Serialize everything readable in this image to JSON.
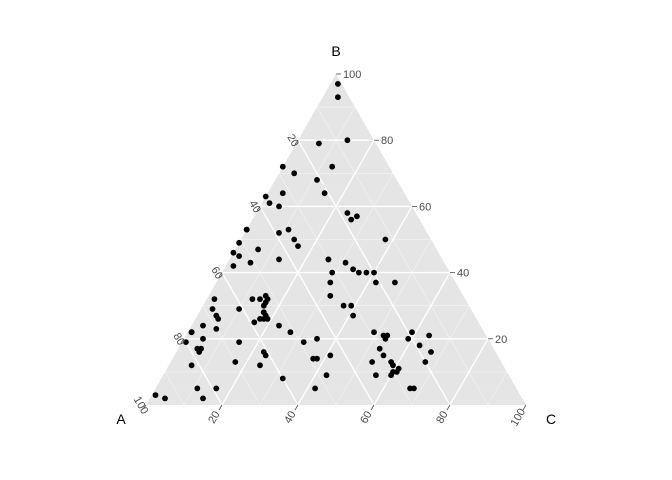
{
  "chart_data": {
    "type": "scatter",
    "subtype": "ternary",
    "title": "",
    "axes": {
      "A": {
        "label": "A"
      },
      "B": {
        "label": "B"
      },
      "C": {
        "label": "C"
      }
    },
    "ticks": [
      "20",
      "40",
      "60",
      "80",
      "100"
    ],
    "grid": true,
    "legend": "none",
    "colors": {
      "panel": "#e5e5e5",
      "grid": "#ffffff",
      "point": "#000000"
    },
    "points": [
      {
        "b": 97,
        "c": 2
      },
      {
        "b": 93,
        "c": 4
      },
      {
        "b": 80,
        "c": 13
      },
      {
        "b": 79,
        "c": 6
      },
      {
        "b": 72,
        "c": 0
      },
      {
        "b": 72,
        "c": 13
      },
      {
        "b": 70,
        "c": 4
      },
      {
        "b": 68,
        "c": 11
      },
      {
        "b": 64,
        "c": 15
      },
      {
        "b": 64,
        "c": 4
      },
      {
        "b": 63,
        "c": 0
      },
      {
        "b": 61,
        "c": 2
      },
      {
        "b": 60,
        "c": 5
      },
      {
        "b": 58,
        "c": 24
      },
      {
        "b": 57,
        "c": 27
      },
      {
        "b": 56,
        "c": 26
      },
      {
        "b": 53,
        "c": 0
      },
      {
        "b": 53,
        "c": 0
      },
      {
        "b": 53,
        "c": 11
      },
      {
        "b": 52,
        "c": 9
      },
      {
        "b": 50,
        "c": 14
      },
      {
        "b": 50,
        "c": 38
      },
      {
        "b": 49,
        "c": 0
      },
      {
        "b": 48,
        "c": 16
      },
      {
        "b": 47,
        "c": 6
      },
      {
        "b": 46,
        "c": 0
      },
      {
        "b": 45,
        "c": 2
      },
      {
        "b": 44,
        "c": 13
      },
      {
        "b": 44,
        "c": 26
      },
      {
        "b": 44,
        "c": 26
      },
      {
        "b": 43,
        "c": 31
      },
      {
        "b": 43,
        "c": 6
      },
      {
        "b": 42,
        "c": 2
      },
      {
        "b": 41,
        "c": 34
      },
      {
        "b": 40,
        "c": 29
      },
      {
        "b": 40,
        "c": 36
      },
      {
        "b": 40,
        "c": 38
      },
      {
        "b": 40,
        "c": 40
      },
      {
        "b": 37,
        "c": 30
      },
      {
        "b": 37,
        "c": 42
      },
      {
        "b": 37,
        "c": 47
      },
      {
        "b": 33,
        "c": 32
      },
      {
        "b": 33,
        "c": 15
      },
      {
        "b": 32,
        "c": 2
      },
      {
        "b": 32,
        "c": 12
      },
      {
        "b": 32,
        "c": 14
      },
      {
        "b": 32,
        "c": 16
      },
      {
        "b": 31,
        "c": 16
      },
      {
        "b": 30,
        "c": 37
      },
      {
        "b": 30,
        "c": 39
      },
      {
        "b": 30,
        "c": 16
      },
      {
        "b": 29,
        "c": 3
      },
      {
        "b": 29,
        "c": 10
      },
      {
        "b": 28,
        "c": 17
      },
      {
        "b": 28,
        "c": 17
      },
      {
        "b": 27,
        "c": 18
      },
      {
        "b": 27,
        "c": 41
      },
      {
        "b": 27,
        "c": 5
      },
      {
        "b": 26,
        "c": 6
      },
      {
        "b": 26,
        "c": 17
      },
      {
        "b": 26,
        "c": 18
      },
      {
        "b": 26,
        "c": 19
      },
      {
        "b": 25,
        "c": 16
      },
      {
        "b": 24,
        "c": 3
      },
      {
        "b": 24,
        "c": 23
      },
      {
        "b": 23,
        "c": 7
      },
      {
        "b": 22,
        "c": 1
      },
      {
        "b": 22,
        "c": 1
      },
      {
        "b": 22,
        "c": 27
      },
      {
        "b": 22,
        "c": 49
      },
      {
        "b": 22,
        "c": 59
      },
      {
        "b": 21,
        "c": 52
      },
      {
        "b": 21,
        "c": 53
      },
      {
        "b": 21,
        "c": 64
      },
      {
        "b": 20,
        "c": 5
      },
      {
        "b": 20,
        "c": 35
      },
      {
        "b": 20,
        "c": 53
      },
      {
        "b": 20,
        "c": 59
      },
      {
        "b": 19,
        "c": 1
      },
      {
        "b": 19,
        "c": 15
      },
      {
        "b": 19,
        "c": 32
      },
      {
        "b": 18,
        "c": 63
      },
      {
        "b": 17,
        "c": 53
      },
      {
        "b": 17,
        "c": 5
      },
      {
        "b": 17,
        "c": 6
      },
      {
        "b": 16,
        "c": 67
      },
      {
        "b": 16,
        "c": 6
      },
      {
        "b": 16,
        "c": 23
      },
      {
        "b": 15,
        "c": 24
      },
      {
        "b": 15,
        "c": 41
      },
      {
        "b": 15,
        "c": 55
      },
      {
        "b": 14,
        "c": 37
      },
      {
        "b": 14,
        "c": 38
      },
      {
        "b": 13,
        "c": 67
      },
      {
        "b": 13,
        "c": 17
      },
      {
        "b": 13,
        "c": 53
      },
      {
        "b": 13,
        "c": 58
      },
      {
        "b": 12,
        "c": 6
      },
      {
        "b": 12,
        "c": 24
      },
      {
        "b": 12,
        "c": 59
      },
      {
        "b": 11,
        "c": 61
      },
      {
        "b": 10,
        "c": 60
      },
      {
        "b": 10,
        "c": 61
      },
      {
        "b": 9,
        "c": 43
      },
      {
        "b": 9,
        "c": 56
      },
      {
        "b": 9,
        "c": 60
      },
      {
        "b": 8,
        "c": 32
      },
      {
        "b": 5,
        "c": 42
      },
      {
        "b": 5,
        "c": 67
      },
      {
        "b": 5,
        "c": 68
      },
      {
        "b": 5,
        "c": 11
      },
      {
        "b": 5,
        "c": 16
      },
      {
        "b": 3,
        "c": 1
      },
      {
        "b": 2,
        "c": 14
      },
      {
        "b": 2,
        "c": 4
      }
    ]
  }
}
